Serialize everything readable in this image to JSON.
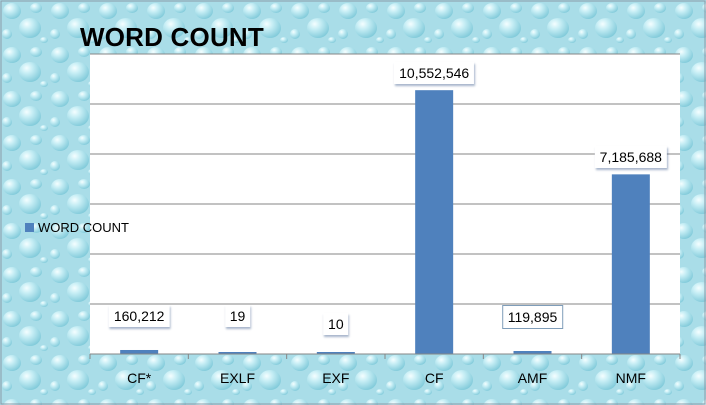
{
  "chart_data": {
    "type": "bar",
    "title": "WORD COUNT",
    "categories": [
      "CF*",
      "EXLF",
      "EXF",
      "CF",
      "AMF",
      "NMF"
    ],
    "series": [
      {
        "name": "WORD COUNT",
        "values": [
          160212,
          19,
          10,
          10552546,
          119895,
          7185688
        ],
        "color": "#4f81bd"
      }
    ],
    "data_labels": [
      "160,212",
      "19",
      "10",
      "10,552,546",
      "119,895",
      "7,185,688"
    ],
    "ylim": [
      0,
      12000000
    ],
    "y_gridlines": 6,
    "legend_position": "left",
    "grid": true,
    "xlabel": "",
    "ylabel": ""
  }
}
